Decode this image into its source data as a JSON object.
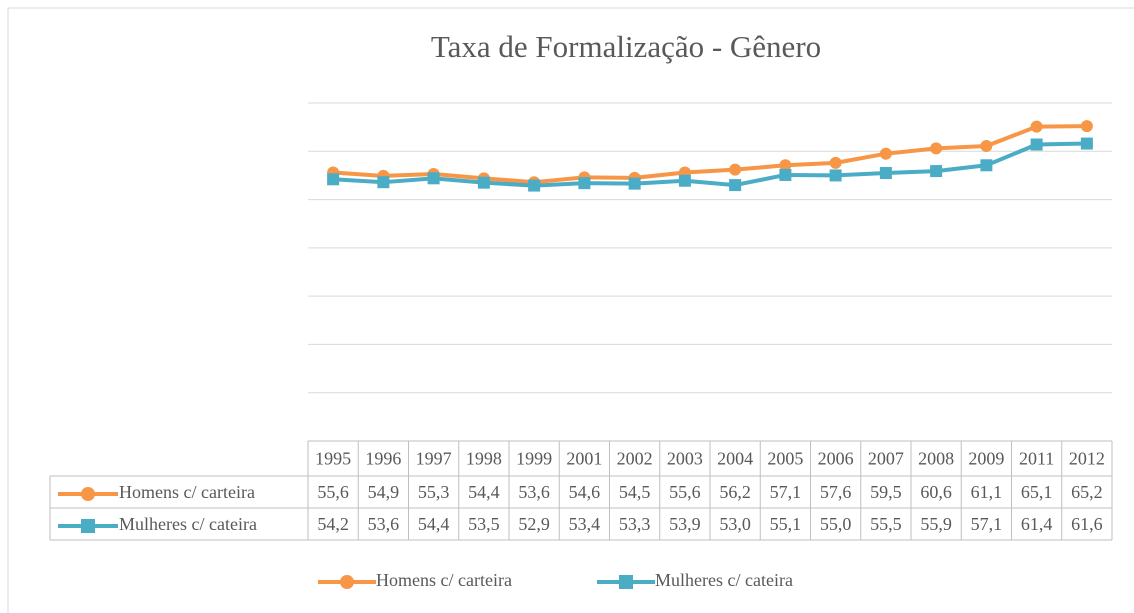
{
  "chart_data": {
    "type": "line",
    "title": "Taxa de Formalização - Gênero",
    "categories": [
      "1995",
      "1996",
      "1997",
      "1998",
      "1999",
      "2001",
      "2002",
      "2003",
      "2004",
      "2005",
      "2006",
      "2007",
      "2008",
      "2009",
      "2011",
      "2012"
    ],
    "series": [
      {
        "name": "Homens c/ carteira",
        "color": "#f79646",
        "marker": "circle",
        "values": [
          55.6,
          54.9,
          55.3,
          54.4,
          53.6,
          54.6,
          54.5,
          55.6,
          56.2,
          57.1,
          57.6,
          59.5,
          60.6,
          61.1,
          65.1,
          65.2
        ],
        "value_labels": [
          "55,6",
          "54,9",
          "55,3",
          "54,4",
          "53,6",
          "54,6",
          "54,5",
          "55,6",
          "56,2",
          "57,1",
          "57,6",
          "59,5",
          "60,6",
          "61,1",
          "65,1",
          "65,2"
        ]
      },
      {
        "name": "Mulheres c/ cateira",
        "color": "#4bacc6",
        "marker": "square",
        "values": [
          54.2,
          53.6,
          54.4,
          53.5,
          52.9,
          53.4,
          53.3,
          53.9,
          53.0,
          55.1,
          55.0,
          55.5,
          55.9,
          57.1,
          61.4,
          61.6
        ],
        "value_labels": [
          "54,2",
          "53,6",
          "54,4",
          "53,5",
          "52,9",
          "53,4",
          "53,3",
          "53,9",
          "53,0",
          "55,1",
          "55,0",
          "55,5",
          "55,9",
          "57,1",
          "61,4",
          "61,6"
        ]
      }
    ],
    "ylim": [
      0,
      70
    ],
    "yticks": [
      0,
      10,
      20,
      30,
      40,
      50,
      60,
      70
    ],
    "grid": true,
    "legend": "bottom"
  }
}
